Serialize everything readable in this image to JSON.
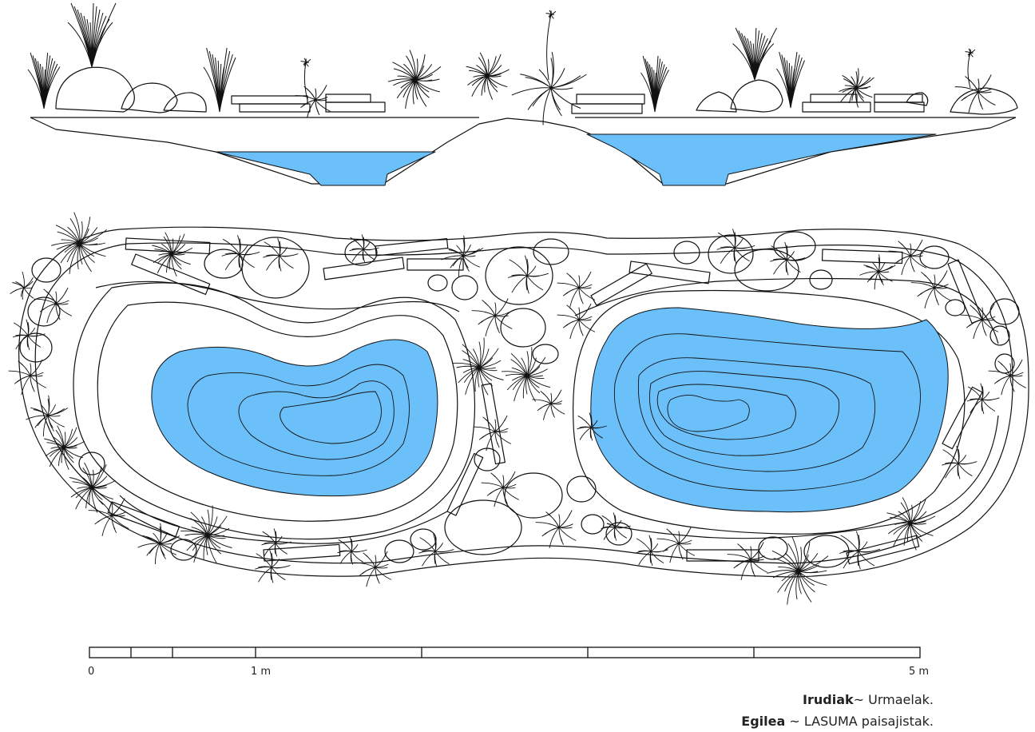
{
  "colors": {
    "water": "#6cc0fa",
    "ink": "#111111",
    "paper": "#ffffff"
  },
  "scale_bar": {
    "labels": {
      "start": "0",
      "mid": "1 m",
      "end": "5 m"
    },
    "total_m": 5
  },
  "caption": {
    "line1_bold": "Irudiak",
    "line1_rest": "~ Urmaelak.",
    "line2_bold": "Egilea",
    "line2_rest": " ~ LASUMA paisajistak."
  }
}
